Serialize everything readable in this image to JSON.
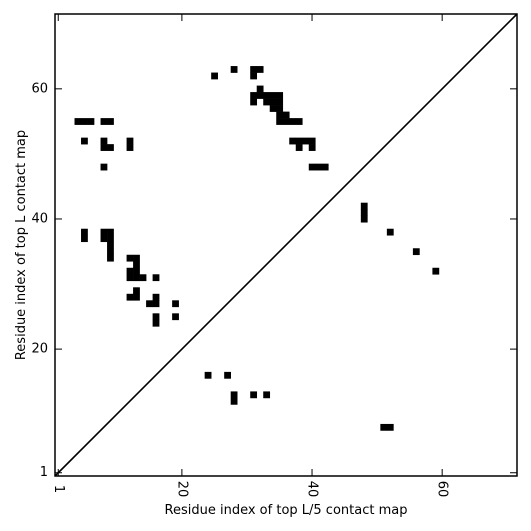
{
  "chart_data": {
    "type": "heatmap",
    "xlabel": "Residue index of top L/5 contact map",
    "ylabel": "Residue index of top L contact map",
    "xlim": [
      0.5,
      71.5
    ],
    "ylim": [
      0.5,
      71.5
    ],
    "x_ticks": [
      1,
      20,
      40,
      60
    ],
    "y_ticks": [
      1,
      20,
      40,
      60
    ],
    "diagonal": true,
    "grid": false,
    "upper_triangle_cells": [
      [
        4,
        55
      ],
      [
        5,
        55
      ],
      [
        6,
        55
      ],
      [
        8,
        55
      ],
      [
        9,
        55
      ],
      [
        5,
        52
      ],
      [
        8,
        52
      ],
      [
        12,
        52
      ],
      [
        8,
        51
      ],
      [
        9,
        51
      ],
      [
        12,
        51
      ],
      [
        8,
        48
      ],
      [
        5,
        38
      ],
      [
        8,
        38
      ],
      [
        9,
        38
      ],
      [
        5,
        37
      ],
      [
        8,
        37
      ],
      [
        9,
        37
      ],
      [
        9,
        36
      ],
      [
        9,
        35
      ],
      [
        9,
        34
      ],
      [
        12,
        34
      ],
      [
        13,
        34
      ],
      [
        13,
        33
      ],
      [
        12,
        32
      ],
      [
        13,
        32
      ],
      [
        12,
        31
      ],
      [
        13,
        31
      ],
      [
        14,
        31
      ],
      [
        16,
        31
      ],
      [
        13,
        29
      ],
      [
        12,
        28
      ],
      [
        13,
        28
      ],
      [
        16,
        28
      ],
      [
        15,
        27
      ],
      [
        16,
        27
      ],
      [
        19,
        27
      ],
      [
        19,
        25
      ],
      [
        16,
        25
      ],
      [
        16,
        24
      ],
      [
        25,
        62
      ],
      [
        28,
        63
      ],
      [
        31,
        63
      ],
      [
        32,
        63
      ],
      [
        31,
        62
      ],
      [
        32,
        60
      ],
      [
        31,
        59
      ],
      [
        32,
        59
      ],
      [
        33,
        59
      ],
      [
        34,
        59
      ],
      [
        35,
        59
      ],
      [
        31,
        58
      ],
      [
        33,
        58
      ],
      [
        34,
        58
      ],
      [
        35,
        58
      ],
      [
        34,
        57
      ],
      [
        35,
        57
      ],
      [
        35,
        56
      ],
      [
        36,
        56
      ],
      [
        35,
        55
      ],
      [
        36,
        55
      ],
      [
        37,
        55
      ],
      [
        38,
        55
      ],
      [
        37,
        52
      ],
      [
        38,
        52
      ],
      [
        39,
        52
      ],
      [
        40,
        52
      ],
      [
        38,
        51
      ],
      [
        40,
        51
      ],
      [
        40,
        48
      ],
      [
        41,
        48
      ],
      [
        42,
        48
      ],
      [
        48,
        42
      ],
      [
        48,
        41
      ],
      [
        48,
        40
      ],
      [
        52,
        38
      ],
      [
        56,
        35
      ],
      [
        59,
        32
      ]
    ],
    "lower_triangle_cells": [
      [
        24,
        16
      ],
      [
        27,
        16
      ],
      [
        28,
        13
      ],
      [
        31,
        13
      ],
      [
        33,
        13
      ],
      [
        28,
        12
      ],
      [
        51,
        8
      ],
      [
        52,
        8
      ]
    ]
  }
}
